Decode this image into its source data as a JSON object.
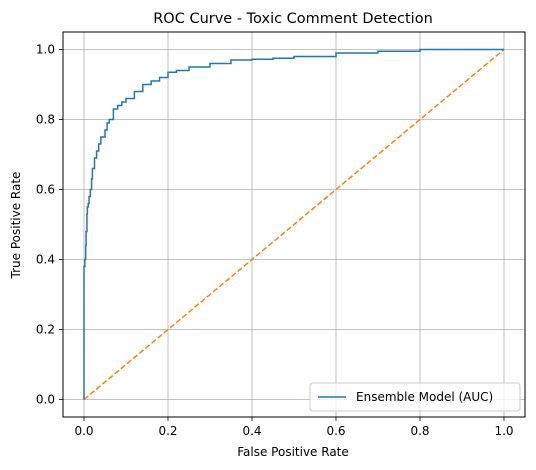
{
  "chart_data": {
    "type": "line",
    "title": "ROC Curve - Toxic Comment Detection",
    "xlabel": "False Positive Rate",
    "ylabel": "True Positive Rate",
    "xlim": [
      -0.05,
      1.05
    ],
    "ylim": [
      -0.05,
      1.05
    ],
    "xticks": [
      0.0,
      0.2,
      0.4,
      0.6,
      0.8,
      1.0
    ],
    "yticks": [
      0.0,
      0.2,
      0.4,
      0.6,
      0.8,
      1.0
    ],
    "xtick_labels": [
      "0.0",
      "0.2",
      "0.4",
      "0.6",
      "0.8",
      "1.0"
    ],
    "ytick_labels": [
      "0.0",
      "0.2",
      "0.4",
      "0.6",
      "0.8",
      "1.0"
    ],
    "grid": true,
    "legend_position": "lower-right",
    "series": [
      {
        "name": "Ensemble Model (AUC)",
        "color": "#1f77b4",
        "style": "solid",
        "x": [
          0.0,
          0.0,
          0.002,
          0.004,
          0.005,
          0.007,
          0.008,
          0.01,
          0.012,
          0.015,
          0.018,
          0.02,
          0.025,
          0.03,
          0.035,
          0.04,
          0.05,
          0.055,
          0.06,
          0.07,
          0.08,
          0.09,
          0.1,
          0.12,
          0.14,
          0.16,
          0.18,
          0.2,
          0.22,
          0.25,
          0.3,
          0.35,
          0.4,
          0.45,
          0.5,
          0.6,
          0.7,
          0.8,
          0.9,
          1.0
        ],
        "y": [
          0.0,
          0.38,
          0.4,
          0.44,
          0.48,
          0.53,
          0.55,
          0.56,
          0.58,
          0.6,
          0.63,
          0.66,
          0.69,
          0.71,
          0.73,
          0.75,
          0.77,
          0.79,
          0.8,
          0.83,
          0.84,
          0.85,
          0.86,
          0.88,
          0.9,
          0.91,
          0.92,
          0.935,
          0.94,
          0.95,
          0.96,
          0.97,
          0.972,
          0.975,
          0.98,
          0.99,
          0.995,
          1.0,
          1.0,
          1.0
        ]
      },
      {
        "name": "",
        "color": "#ff7f0e",
        "style": "dashed",
        "x": [
          0.0,
          1.0
        ],
        "y": [
          0.0,
          1.0
        ]
      }
    ]
  }
}
